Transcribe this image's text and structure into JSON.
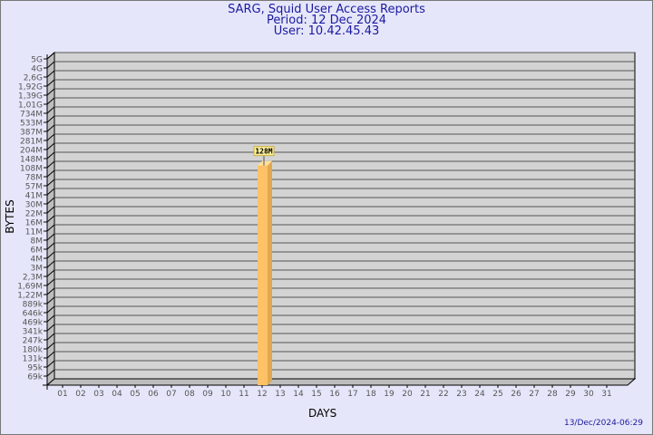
{
  "chart_data": {
    "type": "bar",
    "title": "SARG, Squid User Access Reports",
    "subtitle": [
      "Period: 12 Dec 2024",
      "User: 10.42.45.43"
    ],
    "xlabel": "DAYS",
    "ylabel": "BYTES",
    "y_scale": "log",
    "y_tick_labels": [
      "5G",
      "4G",
      "2,6G",
      "1,92G",
      "1,39G",
      "1,01G",
      "734M",
      "533M",
      "387M",
      "281M",
      "204M",
      "148M",
      "108M",
      "78M",
      "57M",
      "41M",
      "30M",
      "22M",
      "16M",
      "11M",
      "8M",
      "6M",
      "4M",
      "3M",
      "2,3M",
      "1,69M",
      "1,22M",
      "889k",
      "646k",
      "469k",
      "341k",
      "247k",
      "180k",
      "131k",
      "95k",
      "69k"
    ],
    "categories": [
      "01",
      "02",
      "03",
      "04",
      "05",
      "06",
      "07",
      "08",
      "09",
      "10",
      "11",
      "12",
      "13",
      "14",
      "15",
      "16",
      "17",
      "18",
      "19",
      "20",
      "21",
      "22",
      "23",
      "24",
      "25",
      "26",
      "27",
      "28",
      "29",
      "30",
      "31"
    ],
    "values": [
      0,
      0,
      0,
      0,
      0,
      0,
      0,
      0,
      0,
      0,
      0,
      128000000,
      0,
      0,
      0,
      0,
      0,
      0,
      0,
      0,
      0,
      0,
      0,
      0,
      0,
      0,
      0,
      0,
      0,
      0,
      0
    ],
    "data_labels": {
      "12": "128M"
    },
    "grid": true,
    "colors": {
      "bar": "#ffc266",
      "bar_side": "#e0a850",
      "bar_top": "#ffe099",
      "wall": "#d3d3d3",
      "title": "#1a1aa0",
      "label_box": "#fff29c"
    }
  },
  "footer": {
    "timestamp": "13/Dec/2024-06:29"
  }
}
